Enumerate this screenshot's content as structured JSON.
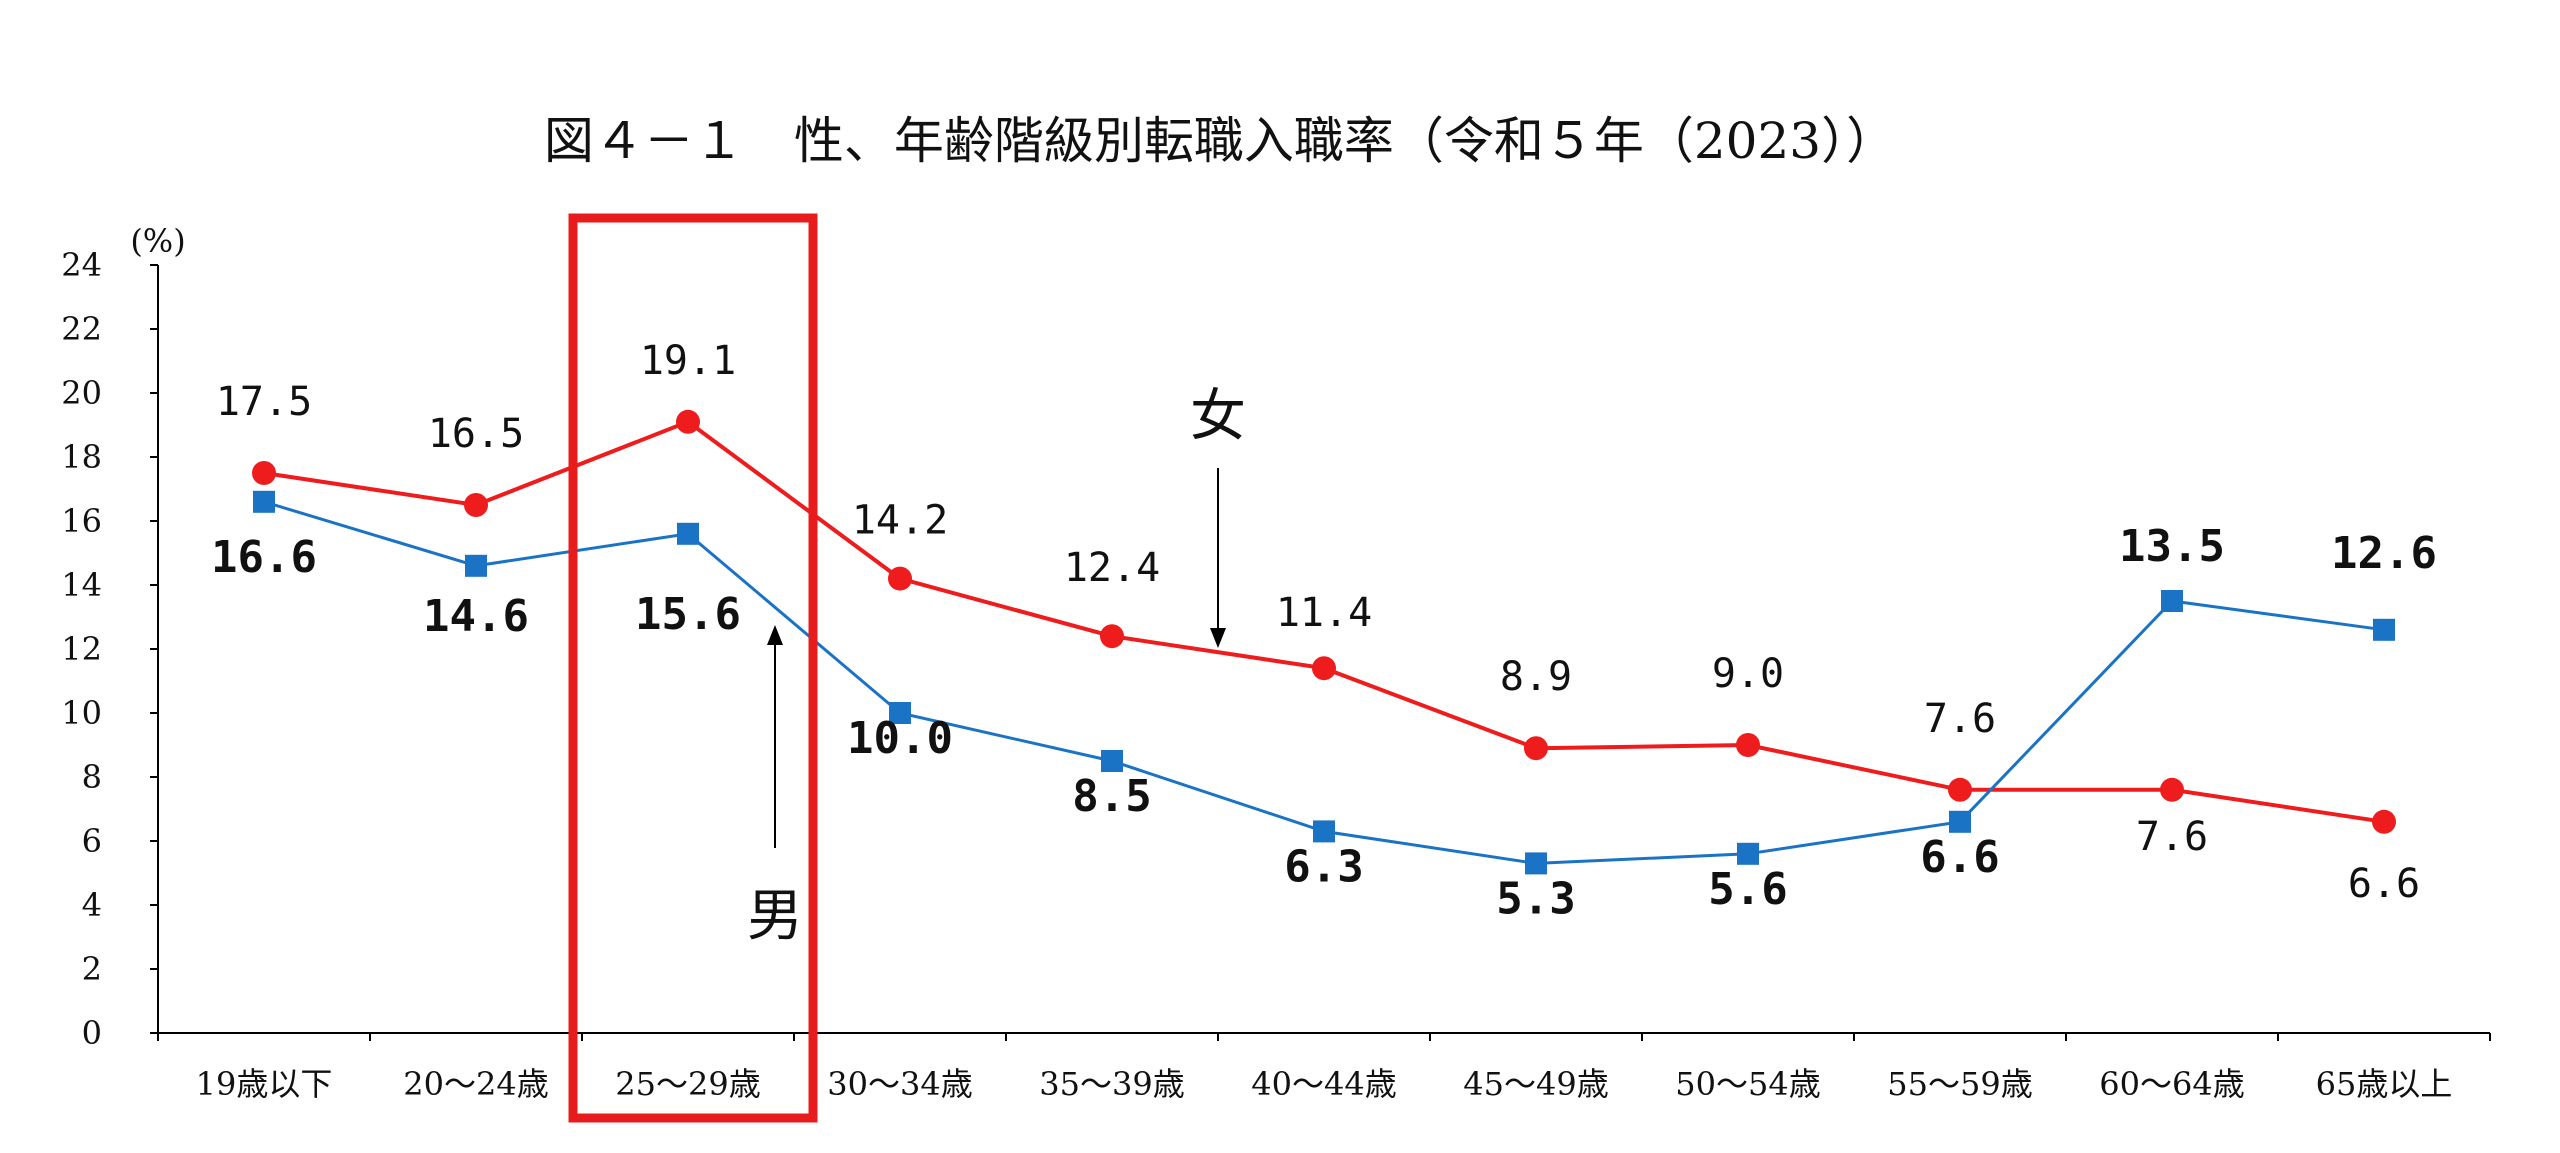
{
  "chart_data": {
    "type": "line",
    "title": "図４－１　性、年齢階級別転職入職率（令和５年（2023））",
    "ylabel": "(%)",
    "ylim": [
      0,
      24
    ],
    "yticks": [
      "0",
      "2",
      "4",
      "6",
      "8",
      "10",
      "12",
      "14",
      "16",
      "18",
      "20",
      "22",
      "24"
    ],
    "categories": [
      "19歳以下",
      "20～24歳",
      "25～29歳",
      "30～34歳",
      "35～39歳",
      "40～44歳",
      "45～49歳",
      "50～54歳",
      "55～59歳",
      "60～64歳",
      "65歳以上"
    ],
    "series": [
      {
        "name": "女",
        "color": "#ee1c1c",
        "marker": "circle",
        "values": [
          17.5,
          16.5,
          19.1,
          14.2,
          12.4,
          11.4,
          8.9,
          9.0,
          7.6,
          7.6,
          6.6
        ],
        "labels": [
          "17.5",
          "16.5",
          "19.1",
          "14.2",
          "12.4",
          "11.4",
          "8.9",
          "9.0",
          "7.6",
          "7.6",
          "6.6"
        ]
      },
      {
        "name": "男",
        "color": "#1a73c4",
        "marker": "square",
        "values": [
          16.6,
          14.6,
          15.6,
          10.0,
          8.5,
          6.3,
          5.3,
          5.6,
          6.6,
          13.5,
          12.6
        ],
        "labels": [
          "16.6",
          "14.6",
          "15.6",
          "10.0",
          "8.5",
          "6.3",
          "5.3",
          "5.6",
          "6.6",
          "13.5",
          "12.6"
        ]
      }
    ],
    "highlight_category": "25～29歳",
    "highlight_color": "#e81c1c",
    "grid": false,
    "legend": "none"
  }
}
